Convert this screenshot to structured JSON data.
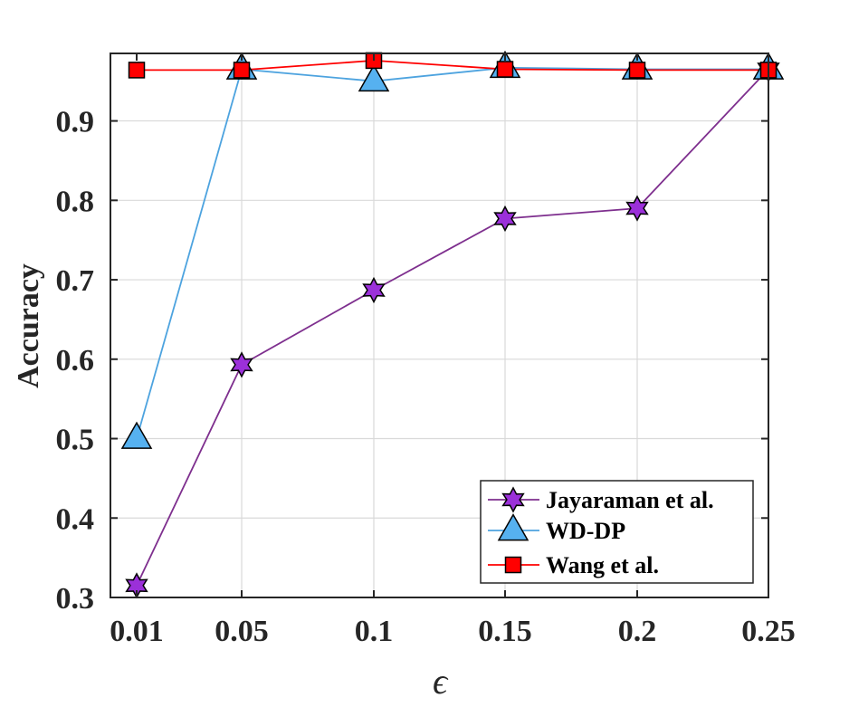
{
  "chart_data": {
    "type": "line",
    "title": "",
    "xlabel": "ϵ",
    "ylabel": "Accuracy",
    "categories": [
      "0.01",
      "0.05",
      "0.1",
      "0.15",
      "0.2",
      "0.25"
    ],
    "yticks": [
      "0.3",
      "0.4",
      "0.5",
      "0.6",
      "0.7",
      "0.8",
      "0.9"
    ],
    "ylim": [
      0.3,
      0.985
    ],
    "grid": true,
    "legend_position": "bottom-right",
    "series": [
      {
        "name": "Jayaraman et al.",
        "values": [
          0.315,
          0.593,
          0.687,
          0.777,
          0.79,
          0.965
        ],
        "color": "#7E2F8E",
        "marker_fill": "#9B30D9",
        "marker": "hexagram-star"
      },
      {
        "name": "WD-DP",
        "values": [
          0.5,
          0.965,
          0.95,
          0.967,
          0.965,
          0.965
        ],
        "color": "#4DA3DF",
        "marker_fill": "#56B1F0",
        "marker": "triangle"
      },
      {
        "name": "Wang et al.",
        "values": [
          0.964,
          0.964,
          0.976,
          0.965,
          0.964,
          0.964
        ],
        "color": "#FF0000",
        "marker_fill": "#FF0000",
        "marker": "square"
      }
    ]
  }
}
